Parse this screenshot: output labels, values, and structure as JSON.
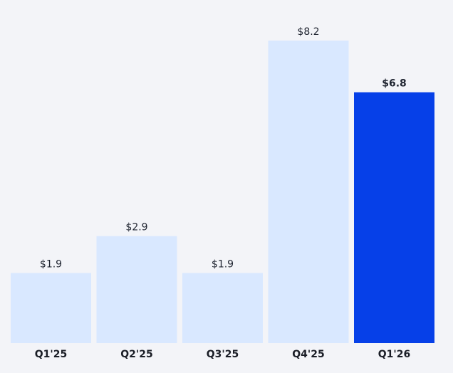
{
  "chart_data": {
    "type": "bar",
    "categories": [
      "Q1'25",
      "Q2'25",
      "Q3'25",
      "Q4'25",
      "Q1'26"
    ],
    "values": [
      1.9,
      2.9,
      1.9,
      8.2,
      6.8
    ],
    "data_labels": [
      "$1.9",
      "$2.9",
      "$1.9",
      "$8.2",
      "$6.8"
    ],
    "highlight_index": 4,
    "ylim": [
      0,
      8.2
    ],
    "grid": false,
    "legend": "none",
    "colors": {
      "bar": "#d9e8ff",
      "highlight": "#0640e8",
      "background": "#f3f4f8"
    }
  }
}
